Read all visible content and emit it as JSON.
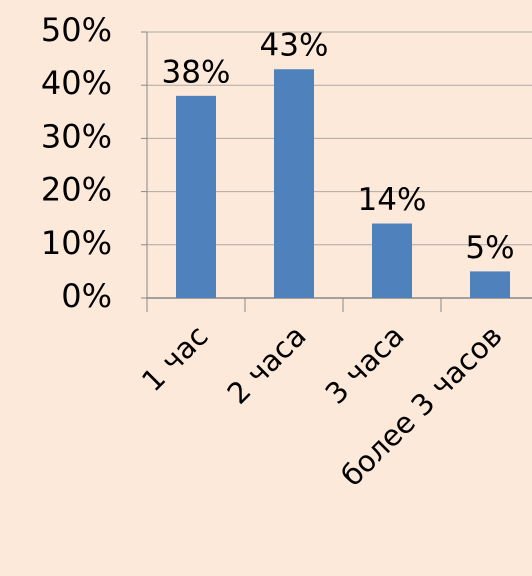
{
  "chart_data": {
    "type": "bar",
    "categories": [
      "1 час",
      "2 часа",
      "3 часа",
      "более 3 часов"
    ],
    "values": [
      38,
      43,
      14,
      5
    ],
    "value_labels": [
      "38%",
      "43%",
      "14%",
      "5%"
    ],
    "color": "#4f81bd",
    "ylim": [
      0,
      50
    ],
    "yticks": [
      {
        "value": 0,
        "label": "0%"
      },
      {
        "value": 10,
        "label": "10%"
      },
      {
        "value": 20,
        "label": "20%"
      },
      {
        "value": 30,
        "label": "30%"
      },
      {
        "value": 40,
        "label": "40%"
      },
      {
        "value": 50,
        "label": "50%"
      }
    ],
    "grid": true
  }
}
